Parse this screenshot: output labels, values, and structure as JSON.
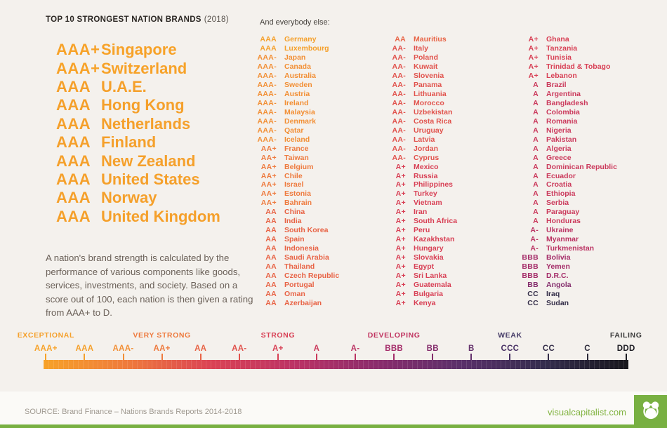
{
  "chart_data": {
    "type": "table",
    "title": "TOP 10 STRONGEST NATION BRANDS",
    "title_year": "(2018)",
    "subtitle": "And everybody else:",
    "description": "A nation's brand strength is calculated by the performance of various components like goods, services, investments, and society. Based on a score out of 100, each nation is then given a rating from AAA+ to D.",
    "top10": [
      {
        "rating": "AAA+",
        "country": "Singapore"
      },
      {
        "rating": "AAA+",
        "country": "Switzerland"
      },
      {
        "rating": "AAA",
        "country": "U.A.E."
      },
      {
        "rating": "AAA",
        "country": "Hong Kong"
      },
      {
        "rating": "AAA",
        "country": "Netherlands"
      },
      {
        "rating": "AAA",
        "country": "Finland"
      },
      {
        "rating": "AAA",
        "country": "New Zealand"
      },
      {
        "rating": "AAA",
        "country": "United States"
      },
      {
        "rating": "AAA",
        "country": "Norway"
      },
      {
        "rating": "AAA",
        "country": "United Kingdom"
      }
    ],
    "columns": [
      [
        {
          "rating": "AAA",
          "country": "Germany"
        },
        {
          "rating": "AAA",
          "country": "Luxembourg"
        },
        {
          "rating": "AAA-",
          "country": "Japan"
        },
        {
          "rating": "AAA-",
          "country": "Canada"
        },
        {
          "rating": "AAA-",
          "country": "Australia"
        },
        {
          "rating": "AAA-",
          "country": "Sweden"
        },
        {
          "rating": "AAA-",
          "country": "Austria"
        },
        {
          "rating": "AAA-",
          "country": "Ireland"
        },
        {
          "rating": "AAA-",
          "country": "Malaysia"
        },
        {
          "rating": "AAA-",
          "country": "Denmark"
        },
        {
          "rating": "AAA-",
          "country": "Qatar"
        },
        {
          "rating": "AAA-",
          "country": "Iceland"
        },
        {
          "rating": "AA+",
          "country": "France"
        },
        {
          "rating": "AA+",
          "country": "Taiwan"
        },
        {
          "rating": "AA+",
          "country": "Belgium"
        },
        {
          "rating": "AA+",
          "country": "Chile"
        },
        {
          "rating": "AA+",
          "country": "Israel"
        },
        {
          "rating": "AA+",
          "country": "Estonia"
        },
        {
          "rating": "AA+",
          "country": "Bahrain"
        },
        {
          "rating": "AA",
          "country": "China"
        },
        {
          "rating": "AA",
          "country": "India"
        },
        {
          "rating": "AA",
          "country": "South Korea"
        },
        {
          "rating": "AA",
          "country": "Spain"
        },
        {
          "rating": "AA",
          "country": "Indonesia"
        },
        {
          "rating": "AA",
          "country": "Saudi Arabia"
        },
        {
          "rating": "AA",
          "country": "Thailand"
        },
        {
          "rating": "AA",
          "country": "Czech Republic"
        },
        {
          "rating": "AA",
          "country": "Portugal"
        },
        {
          "rating": "AA",
          "country": "Oman"
        },
        {
          "rating": "AA",
          "country": "Azerbaijan"
        }
      ],
      [
        {
          "rating": "AA",
          "country": "Mauritius"
        },
        {
          "rating": "AA-",
          "country": "Italy"
        },
        {
          "rating": "AA-",
          "country": "Poland"
        },
        {
          "rating": "AA-",
          "country": "Kuwait"
        },
        {
          "rating": "AA-",
          "country": "Slovenia"
        },
        {
          "rating": "AA-",
          "country": "Panama"
        },
        {
          "rating": "AA-",
          "country": "Lithuania"
        },
        {
          "rating": "AA-",
          "country": "Morocco"
        },
        {
          "rating": "AA-",
          "country": "Uzbekistan"
        },
        {
          "rating": "AA-",
          "country": "Costa Rica"
        },
        {
          "rating": "AA-",
          "country": "Uruguay"
        },
        {
          "rating": "AA-",
          "country": "Latvia"
        },
        {
          "rating": "AA-",
          "country": "Jordan"
        },
        {
          "rating": "AA-",
          "country": "Cyprus"
        },
        {
          "rating": "A+",
          "country": "Mexico"
        },
        {
          "rating": "A+",
          "country": "Russia"
        },
        {
          "rating": "A+",
          "country": "Philippines"
        },
        {
          "rating": "A+",
          "country": "Turkey"
        },
        {
          "rating": "A+",
          "country": "Vietnam"
        },
        {
          "rating": "A+",
          "country": "Iran"
        },
        {
          "rating": "A+",
          "country": "South Africa"
        },
        {
          "rating": "A+",
          "country": "Peru"
        },
        {
          "rating": "A+",
          "country": "Kazakhstan"
        },
        {
          "rating": "A+",
          "country": "Hungary"
        },
        {
          "rating": "A+",
          "country": "Slovakia"
        },
        {
          "rating": "A+",
          "country": "Egypt"
        },
        {
          "rating": "A+",
          "country": "Sri Lanka"
        },
        {
          "rating": "A+",
          "country": "Guatemala"
        },
        {
          "rating": "A+",
          "country": "Bulgaria"
        },
        {
          "rating": "A+",
          "country": "Kenya"
        }
      ],
      [
        {
          "rating": "A+",
          "country": "Ghana"
        },
        {
          "rating": "A+",
          "country": "Tanzania"
        },
        {
          "rating": "A+",
          "country": "Tunisia"
        },
        {
          "rating": "A+",
          "country": "Trinidad & Tobago"
        },
        {
          "rating": "A+",
          "country": "Lebanon"
        },
        {
          "rating": "A",
          "country": "Brazil"
        },
        {
          "rating": "A",
          "country": "Argentina"
        },
        {
          "rating": "A",
          "country": "Bangladesh"
        },
        {
          "rating": "A",
          "country": "Colombia"
        },
        {
          "rating": "A",
          "country": "Romania"
        },
        {
          "rating": "A",
          "country": "Nigeria"
        },
        {
          "rating": "A",
          "country": "Pakistan"
        },
        {
          "rating": "A",
          "country": "Algeria"
        },
        {
          "rating": "A",
          "country": "Greece"
        },
        {
          "rating": "A",
          "country": "Dominican Republic"
        },
        {
          "rating": "A",
          "country": "Ecuador"
        },
        {
          "rating": "A",
          "country": "Croatia"
        },
        {
          "rating": "A",
          "country": "Ethiopia"
        },
        {
          "rating": "A",
          "country": "Serbia"
        },
        {
          "rating": "A",
          "country": "Paraguay"
        },
        {
          "rating": "A",
          "country": "Honduras"
        },
        {
          "rating": "A-",
          "country": "Ukraine"
        },
        {
          "rating": "A-",
          "country": "Myanmar"
        },
        {
          "rating": "A-",
          "country": "Turkmenistan"
        },
        {
          "rating": "BBB",
          "country": "Bolivia"
        },
        {
          "rating": "BBB",
          "country": "Yemen"
        },
        {
          "rating": "BBB",
          "country": "D.R.C."
        },
        {
          "rating": "BB",
          "country": "Angola"
        },
        {
          "rating": "CC",
          "country": "Iraq"
        },
        {
          "rating": "CC",
          "country": "Sudan"
        }
      ]
    ],
    "scale": {
      "ticks": [
        "AAA+",
        "AAA",
        "AAA-",
        "AA+",
        "AA",
        "AA-",
        "A+",
        "A",
        "A-",
        "BBB",
        "BB",
        "B",
        "CCC",
        "CC",
        "C",
        "DDD"
      ],
      "categories": [
        {
          "label": "EXCEPTIONAL",
          "tick_index": 0
        },
        {
          "label": "VERY STRONG",
          "tick_index": 3
        },
        {
          "label": "STRONG",
          "tick_index": 6
        },
        {
          "label": "DEVELOPING",
          "tick_index": 9
        },
        {
          "label": "WEAK",
          "tick_index": 12
        },
        {
          "label": "FAILING",
          "tick_index": 15
        }
      ],
      "gradient": [
        "#F7A228",
        "#EF7B3C",
        "#DB4354",
        "#BC3365",
        "#8A2C6C",
        "#5A306A",
        "#352E4E",
        "#18171C"
      ]
    }
  },
  "rating_colors": {
    "AAA+": "#F7A228",
    "AAA": "#F5A02B",
    "AAA-": "#F28F35",
    "AA+": "#EE7A3E",
    "AA": "#E86345",
    "AA-": "#E1524C",
    "A+": "#D84055",
    "A": "#CB3A5C",
    "A-": "#BB3363",
    "BBB": "#A42C69",
    "BB": "#842D6C",
    "B": "#63306C",
    "CCC": "#483164",
    "CC": "#332D48",
    "C": "#2A2838",
    "DDD": "#1C1B22"
  },
  "category_colors": {
    "EXCEPTIONAL": "#F5A02B",
    "VERY STRONG": "#EE7A3E",
    "STRONG": "#D84055",
    "DEVELOPING": "#C0325F",
    "WEAK": "#443A66",
    "FAILING": "#3A3A3A"
  },
  "footer": {
    "source": "SOURCE: Brand Finance – Nations Brands Reports 2014-2018",
    "site": "visualcapitalist.com",
    "brand_green": "#78B042"
  }
}
